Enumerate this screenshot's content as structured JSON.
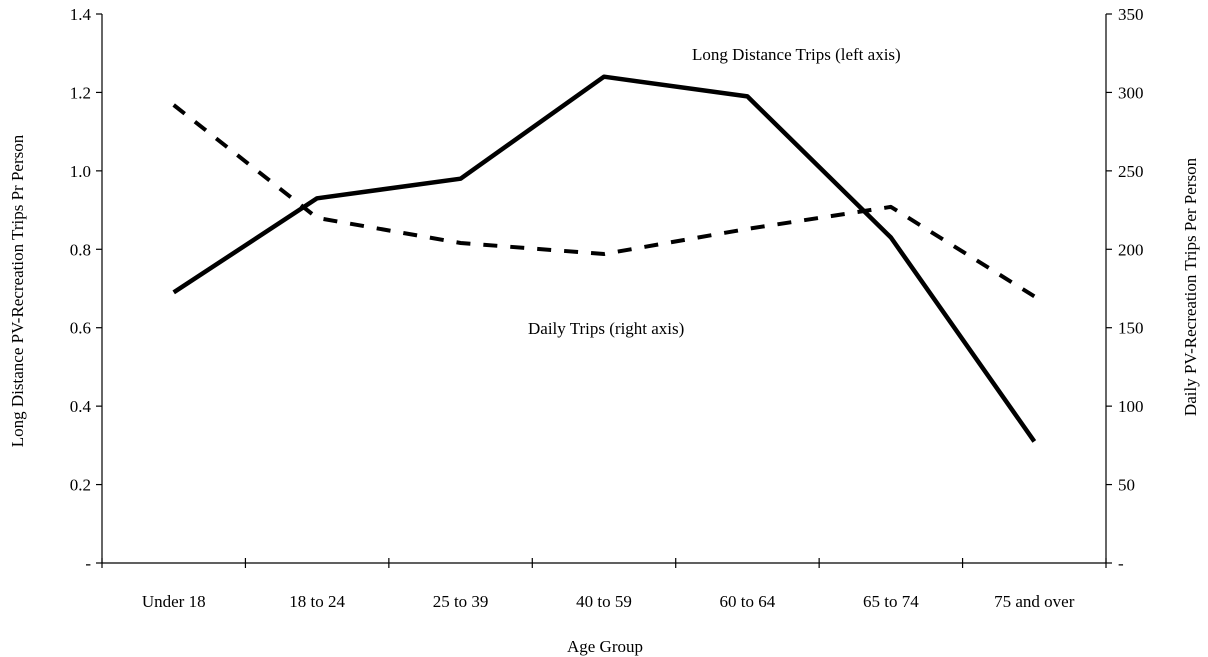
{
  "chart_data": {
    "type": "line",
    "xlabel": "Age Group",
    "ylabel_left": "Long Distance PV-Recreation Trips Pr Person",
    "ylabel_right": "Daily PV-Recreation Trips Per Person",
    "categories": [
      "Under 18",
      "18 to 24",
      "25 to 39",
      "40 to 59",
      "60 to 64",
      "65 to 74",
      "75 and over"
    ],
    "y_left": {
      "lim": [
        0,
        1.4
      ],
      "ticks": [
        "-",
        "0.2",
        "0.4",
        "0.6",
        "0.8",
        "1.0",
        "1.2",
        "1.4"
      ]
    },
    "y_right": {
      "lim": [
        0,
        350
      ],
      "ticks": [
        "-",
        "50",
        "100",
        "150",
        "200",
        "250",
        "300",
        "350"
      ]
    },
    "grid": false,
    "series": [
      {
        "axis": "left",
        "style": "solid",
        "color": "#000000",
        "values": [
          0.69,
          0.93,
          0.98,
          1.24,
          1.19,
          0.83,
          0.31
        ]
      },
      {
        "axis": "right",
        "style": "dashed",
        "color": "#000000",
        "values": [
          292,
          220,
          204,
          197,
          213,
          227,
          170
        ]
      }
    ],
    "annotations": {
      "long_distance": "Long Distance Trips (left axis)",
      "daily": "Daily Trips (right axis)"
    }
  }
}
